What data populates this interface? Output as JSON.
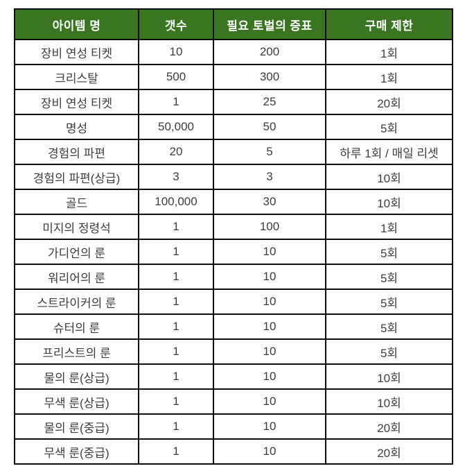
{
  "chart_data": {
    "type": "table",
    "columns": [
      "아이템 명",
      "갯수",
      "필요 토벌의 증표",
      "구매 제한"
    ],
    "rows": [
      [
        "장비 연성 티켓",
        "10",
        "200",
        "1회"
      ],
      [
        "크리스탈",
        "500",
        "300",
        "1회"
      ],
      [
        "장비 연성 티켓",
        "1",
        "25",
        "20회"
      ],
      [
        "명성",
        "50,000",
        "50",
        "5회"
      ],
      [
        "경험의 파편",
        "20",
        "5",
        "하루 1회 / 매일 리셋"
      ],
      [
        "경험의 파편(상급)",
        "3",
        "3",
        "10회"
      ],
      [
        "골드",
        "100,000",
        "30",
        "10회"
      ],
      [
        "미지의 정령석",
        "1",
        "100",
        "1회"
      ],
      [
        "가디언의 룬",
        "1",
        "10",
        "5회"
      ],
      [
        "워리어의 룬",
        "1",
        "10",
        "5회"
      ],
      [
        "스트라이커의 룬",
        "1",
        "10",
        "5회"
      ],
      [
        "슈터의 룬",
        "1",
        "10",
        "5회"
      ],
      [
        "프리스트의 룬",
        "1",
        "10",
        "5회"
      ],
      [
        "물의 룬(상급)",
        "1",
        "10",
        "10회"
      ],
      [
        "무색 룬(상급)",
        "1",
        "10",
        "10회"
      ],
      [
        "물의 룬(중급)",
        "1",
        "10",
        "20회"
      ],
      [
        "무색 룬(중급)",
        "1",
        "10",
        "20회"
      ]
    ],
    "title": "",
    "legend": "none",
    "grid": "full-borders"
  },
  "colors": {
    "header_bg": "#3a7622",
    "header_text": "#ffffff",
    "border": "#0d0d0d",
    "body_text": "#3d3d3d",
    "row_bg": "#ffffff"
  },
  "cell_names": [
    "item-name-cell",
    "count-cell",
    "token-cost-cell",
    "purchase-limit-cell"
  ]
}
